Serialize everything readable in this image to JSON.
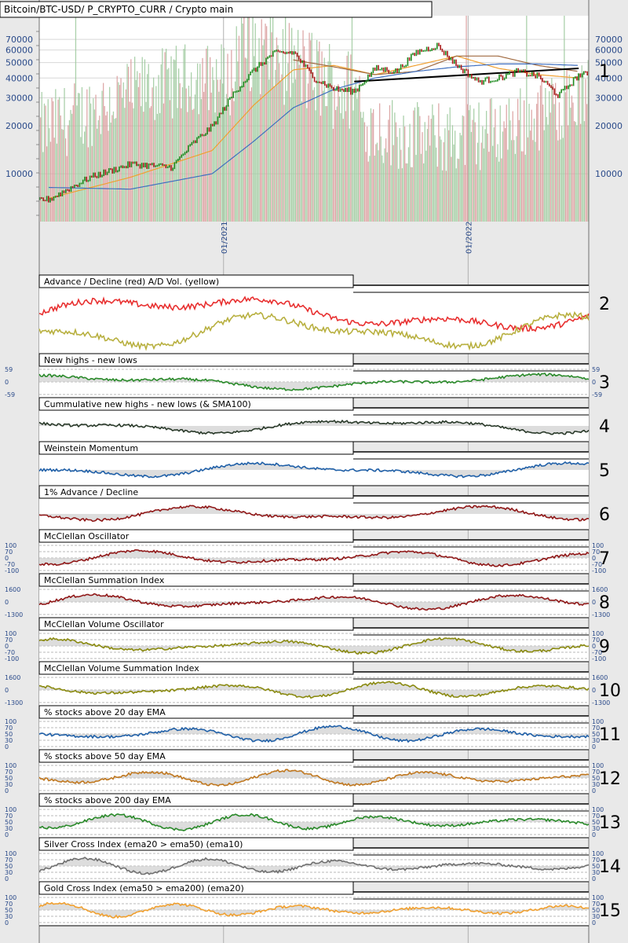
{
  "chart_data": {
    "type": "line",
    "main": {
      "title": "Bitcoin/BTC-USD/ P_CRYPTO_CURR / Crypto main",
      "scale": "log",
      "ylim": [
        5000,
        90000
      ],
      "y_ticks": [
        70000,
        60000,
        50000,
        40000,
        30000,
        20000,
        10000
      ],
      "x_ticks": [
        {
          "date": "2021-01-01",
          "label": "01/2021"
        },
        {
          "date": "2022-01-01",
          "label": "01/2022"
        }
      ],
      "x_range": [
        "2020-04-01",
        "2022-06-30"
      ],
      "series": [
        {
          "name": "price",
          "color": "#1e8a1e",
          "x": [
            "2020-04",
            "2020-06",
            "2020-08",
            "2020-10",
            "2020-11",
            "2020-12",
            "2021-01",
            "2021-02",
            "2021-03",
            "2021-04",
            "2021-05",
            "2021-06",
            "2021-07",
            "2021-08",
            "2021-09",
            "2021-10",
            "2021-11",
            "2021-12",
            "2022-01",
            "2022-02",
            "2022-03",
            "2022-04",
            "2022-05",
            "2022-06"
          ],
          "y": [
            6900,
            9500,
            11500,
            11000,
            15500,
            20000,
            32000,
            45000,
            57000,
            58000,
            40000,
            34000,
            33000,
            46000,
            44000,
            58000,
            64000,
            48000,
            38000,
            40000,
            44000,
            41000,
            31000,
            42000
          ]
        },
        {
          "name": "ma-orange",
          "color": "#f0a030",
          "x": [
            "2020-04",
            "2020-08",
            "2020-12",
            "2021-02",
            "2021-04",
            "2021-06",
            "2021-08",
            "2021-10",
            "2021-12",
            "2022-02",
            "2022-04",
            "2022-06"
          ],
          "y": [
            7000,
            9500,
            14000,
            27000,
            45000,
            48000,
            42000,
            48000,
            55000,
            46000,
            42000,
            40000
          ]
        },
        {
          "name": "ma-brown",
          "color": "#a06a40",
          "x": [
            "2021-04",
            "2021-06",
            "2021-08",
            "2021-10",
            "2021-12",
            "2022-02",
            "2022-04",
            "2022-06"
          ],
          "y": [
            52000,
            47000,
            42000,
            44000,
            55000,
            55000,
            48000,
            44000
          ]
        },
        {
          "name": "ma-blue",
          "color": "#4070c0",
          "x": [
            "2020-04",
            "2020-08",
            "2020-12",
            "2021-02",
            "2021-04",
            "2021-06",
            "2021-08",
            "2021-10",
            "2021-12",
            "2022-02",
            "2022-04",
            "2022-06"
          ],
          "y": [
            8200,
            8000,
            10000,
            16000,
            26000,
            34000,
            40000,
            44000,
            47000,
            49000,
            49000,
            48000
          ]
        },
        {
          "name": "trendline",
          "color": "#000000",
          "x": [
            "2021-07",
            "2022-06"
          ],
          "y": [
            38000,
            46000
          ]
        }
      ]
    },
    "panels": [
      {
        "id": "1",
        "title": "",
        "number": "1"
      },
      {
        "id": "2",
        "title": "Advance / Decline (red) A/D Vol. (yellow)",
        "number": "2",
        "series": [
          {
            "name": "A/D",
            "color": "#e83030"
          },
          {
            "name": "A/D Vol.",
            "color": "#b8b040"
          }
        ]
      },
      {
        "id": "3",
        "title": "New highs - new lows",
        "number": "3",
        "ticks": [
          "59",
          "0",
          "-59"
        ],
        "color": "#2a8a2a"
      },
      {
        "id": "4",
        "title": "Cummulative new highs - new lows (& SMA100)",
        "number": "4",
        "color": "#2a3a2a"
      },
      {
        "id": "5",
        "title": "Weinstein Momentum",
        "number": "5",
        "color": "#2060a8"
      },
      {
        "id": "6",
        "title": "1% Advance / Decline",
        "number": "6",
        "color": "#901818"
      },
      {
        "id": "7",
        "title": "McClellan Oscillator",
        "number": "7",
        "ticks": [
          "100",
          "70",
          "0",
          "-70",
          "-100"
        ],
        "color": "#901818"
      },
      {
        "id": "8",
        "title": "McClellan Summation Index",
        "number": "8",
        "ticks": [
          "1600",
          "0",
          "-1300"
        ],
        "color": "#901818"
      },
      {
        "id": "9",
        "title": "McClellan Volume Oscillator",
        "number": "9",
        "ticks": [
          "100",
          "70",
          "0",
          "-70",
          "-100"
        ],
        "color": "#8a8a10"
      },
      {
        "id": "10",
        "title": "McClellan Volume Summation Index",
        "number": "10",
        "ticks": [
          "1600",
          "0",
          "-1300"
        ],
        "color": "#8a8a10"
      },
      {
        "id": "11",
        "title": "% stocks above 20 day EMA",
        "number": "11",
        "ticks": [
          "100",
          "70",
          "50",
          "30",
          "0"
        ],
        "color": "#2060a8"
      },
      {
        "id": "12",
        "title": "% stocks above 50 day EMA",
        "number": "12",
        "ticks": [
          "100",
          "70",
          "50",
          "30",
          "0"
        ],
        "color": "#c07820"
      },
      {
        "id": "13",
        "title": "% stocks above 200 day EMA",
        "number": "13",
        "ticks": [
          "100",
          "70",
          "50",
          "30",
          "0"
        ],
        "color": "#2a8a2a"
      },
      {
        "id": "14",
        "title": "Silver Cross Index (ema20 > ema50) (ema10)",
        "number": "14",
        "ticks": [
          "100",
          "70",
          "50",
          "30",
          "0"
        ],
        "color": "#707070"
      },
      {
        "id": "15",
        "title": "Gold Cross Index (ema50 > ema200) (ema20)",
        "number": "15",
        "ticks": [
          "100",
          "70",
          "50",
          "30",
          "0"
        ],
        "color": "#f0a030"
      }
    ]
  }
}
